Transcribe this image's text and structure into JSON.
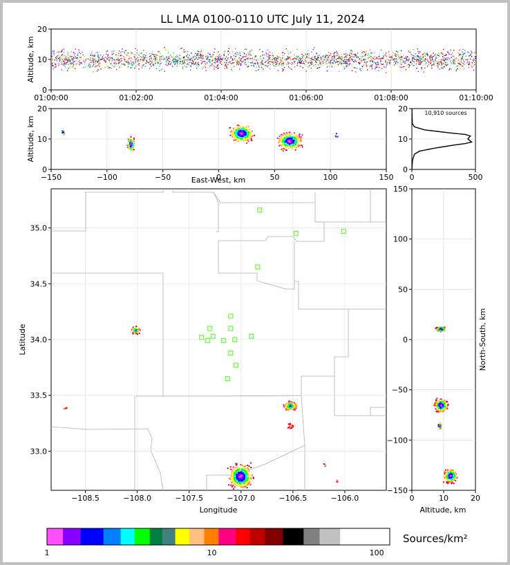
{
  "chart_data": {
    "type": "scatter",
    "title": "LL LMA 0100-0110 UTC July 11, 2024",
    "panels": {
      "time_height": {
        "ylabel": "Altitude, km",
        "ylim": [
          0,
          20
        ],
        "yticks": [
          "0",
          "10",
          "20"
        ],
        "xlim": [
          "01:00:00",
          "01:10:00"
        ],
        "xticks": [
          "01:00:00",
          "01:02:00",
          "01:04:00",
          "01:06:00",
          "01:08:00",
          "01:10:00"
        ],
        "source_altitude_band_km": [
          5,
          15
        ]
      },
      "ew_height": {
        "xlabel": "East-West, km",
        "ylabel": "Altitude, km",
        "xlim": [
          -150,
          150
        ],
        "xticks": [
          "−150",
          "−100",
          "−50",
          "0",
          "50",
          "100",
          "150"
        ],
        "ylim": [
          0,
          20
        ],
        "yticks": [
          "0",
          "10",
          "20"
        ],
        "clusters": [
          {
            "x": -79,
            "alt": 8.5,
            "size": "small"
          },
          {
            "x": 20,
            "alt": 12,
            "size": "large"
          },
          {
            "x": 63,
            "alt": 9.5,
            "size": "large"
          },
          {
            "x": 105,
            "alt": 11,
            "size": "tiny"
          },
          {
            "x": -140,
            "alt": 12.5,
            "size": "tiny"
          }
        ]
      },
      "alt_histogram": {
        "annotation": "10,910 sources",
        "xlim": [
          0,
          500
        ],
        "xticks": [
          "0",
          "500"
        ],
        "ylim": [
          0,
          20
        ],
        "yticks": [
          "0",
          "10",
          "20"
        ],
        "profile": [
          {
            "alt": 0,
            "count": 0
          },
          {
            "alt": 3,
            "count": 5
          },
          {
            "alt": 5,
            "count": 20
          },
          {
            "alt": 6,
            "count": 60
          },
          {
            "alt": 7,
            "count": 180
          },
          {
            "alt": 8,
            "count": 330
          },
          {
            "alt": 8.5,
            "count": 420
          },
          {
            "alt": 9,
            "count": 470
          },
          {
            "alt": 10,
            "count": 440
          },
          {
            "alt": 11,
            "count": 460
          },
          {
            "alt": 11.5,
            "count": 420
          },
          {
            "alt": 12,
            "count": 300
          },
          {
            "alt": 13,
            "count": 100
          },
          {
            "alt": 14,
            "count": 20
          },
          {
            "alt": 15,
            "count": 4
          },
          {
            "alt": 20,
            "count": 0
          }
        ]
      },
      "plan_view": {
        "xlabel": "Longitude",
        "ylabel": "Latitude",
        "xlim": [
          -108.83,
          -105.6
        ],
        "ylim": [
          32.65,
          35.35
        ],
        "xticks": [
          "−108.5",
          "−108.0",
          "−107.5",
          "−107.0",
          "−106.5",
          "−106.0"
        ],
        "yticks": [
          "33.0",
          "33.5",
          "34.0",
          "34.5",
          "35.0"
        ],
        "stations": [
          [
            -106.82,
            35.16
          ],
          [
            -106.47,
            34.95
          ],
          [
            -106.01,
            34.97
          ],
          [
            -106.84,
            34.65
          ],
          [
            -107.1,
            34.21
          ],
          [
            -107.3,
            34.1
          ],
          [
            -107.1,
            34.1
          ],
          [
            -107.38,
            34.02
          ],
          [
            -107.27,
            34.03
          ],
          [
            -107.32,
            33.99
          ],
          [
            -107.17,
            33.99
          ],
          [
            -107.06,
            34.0
          ],
          [
            -106.9,
            34.03
          ],
          [
            -107.1,
            33.88
          ],
          [
            -107.05,
            33.77
          ],
          [
            -107.13,
            33.65
          ]
        ],
        "clusters": [
          {
            "lon": -108.02,
            "lat": 34.09,
            "rx": 0.05,
            "ry": 0.04,
            "n": 110,
            "intensity": "medium"
          },
          {
            "lon": -106.53,
            "lat": 33.41,
            "rx": 0.08,
            "ry": 0.05,
            "n": 140,
            "intensity": "medium"
          },
          {
            "lon": -106.53,
            "lat": 33.23,
            "rx": 0.03,
            "ry": 0.03,
            "n": 30,
            "intensity": "low"
          },
          {
            "lon": -107.01,
            "lat": 32.78,
            "rx": 0.14,
            "ry": 0.13,
            "n": 520,
            "intensity": "high"
          },
          {
            "lon": -108.7,
            "lat": 33.39,
            "rx": 0.02,
            "ry": 0.01,
            "n": 8,
            "intensity": "low"
          },
          {
            "lon": -106.2,
            "lat": 32.88,
            "rx": 0.02,
            "ry": 0.02,
            "n": 6,
            "intensity": "low"
          },
          {
            "lon": -106.08,
            "lat": 32.74,
            "rx": 0.01,
            "ry": 0.02,
            "n": 5,
            "intensity": "low"
          }
        ]
      },
      "ns_height": {
        "xlabel": "Altitude, km",
        "ylabel": "North-South, km",
        "xlim": [
          0,
          20
        ],
        "xticks": [
          "0",
          "10",
          "20"
        ],
        "ylim": [
          -150,
          150
        ],
        "yticks": [
          "−150",
          "−100",
          "−50",
          "0",
          "50",
          "100",
          "150"
        ],
        "clusters": [
          {
            "alt": 9,
            "y": 11,
            "size": "medium"
          },
          {
            "alt": 9,
            "y": -65,
            "size": "large"
          },
          {
            "alt": 8.5,
            "y": -85,
            "size": "small"
          },
          {
            "alt": 12,
            "y": -135,
            "size": "large"
          }
        ]
      }
    },
    "colorbar": {
      "label": "Sources/km²",
      "scale": "log",
      "range": [
        1,
        120
      ],
      "ticks": [
        "1",
        "10",
        "100"
      ],
      "colors": [
        "#ff50ff",
        "#8800ff",
        "#0000ff",
        "#0080ff",
        "#00ffff",
        "#00ff00",
        "#008040",
        "#408080",
        "#ffff00",
        "#ffc080",
        "#ff8000",
        "#ff0080",
        "#ff0000",
        "#c00000",
        "#800000",
        "#000000",
        "#808080",
        "#c0c0c0",
        "#ffffff"
      ]
    }
  }
}
